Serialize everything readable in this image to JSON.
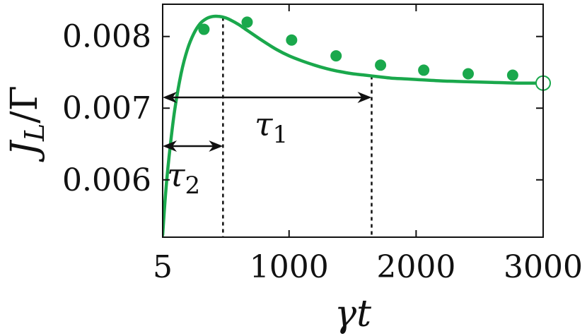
{
  "chart_data": {
    "type": "line",
    "xlabel": "γt",
    "ylabel": "J_L/Γ",
    "xlim": [
      5,
      3000
    ],
    "ylim": [
      0.0052,
      0.00845
    ],
    "x_ticks": [
      {
        "value": 5,
        "label": "5"
      },
      {
        "value": 1000,
        "label": "1000"
      },
      {
        "value": 2000,
        "label": "2000"
      },
      {
        "value": 3000,
        "label": "3000"
      }
    ],
    "y_ticks": [
      {
        "value": 0.006,
        "label": "0.006"
      },
      {
        "value": 0.007,
        "label": "0.007"
      },
      {
        "value": 0.008,
        "label": "0.008"
      }
    ],
    "color": "#1aa84c",
    "series": [
      {
        "kind": "curve",
        "x": [
          5,
          30,
          60,
          100,
          150,
          200,
          250,
          300,
          350,
          400,
          450,
          500,
          550,
          600,
          650,
          700,
          800,
          900,
          1000,
          1100,
          1200,
          1300,
          1400,
          1500,
          1600,
          1700,
          1800,
          1900,
          2000,
          2200,
          2400,
          2600,
          2800,
          3000
        ],
        "y": [
          0.00523,
          0.00585,
          0.0064,
          0.00698,
          0.00748,
          0.00782,
          0.00804,
          0.00818,
          0.00825,
          0.00828,
          0.00828,
          0.00826,
          0.00822,
          0.00817,
          0.00811,
          0.00805,
          0.00793,
          0.00782,
          0.00773,
          0.00766,
          0.0076,
          0.00755,
          0.00751,
          0.00748,
          0.00746,
          0.00744,
          0.00742,
          0.00741,
          0.0074,
          0.00738,
          0.00737,
          0.00736,
          0.00735,
          0.00735
        ]
      },
      {
        "kind": "points",
        "x": [
          330,
          670,
          1020,
          1370,
          1720,
          2060,
          2410,
          2760
        ],
        "y": [
          0.0081,
          0.0082,
          0.00795,
          0.00773,
          0.0076,
          0.00753,
          0.00748,
          0.00746
        ]
      },
      {
        "kind": "open-point",
        "x": [
          3000
        ],
        "y": [
          0.00735
        ]
      }
    ],
    "annotations": [
      {
        "label": "τ1",
        "arrow_x": [
          5,
          1650
        ],
        "arrow_y": 0.00715
      },
      {
        "label": "τ2",
        "arrow_x": [
          5,
          480
        ],
        "arrow_y": 0.00647
      }
    ],
    "guide_lines_x": [
      480,
      1650
    ]
  }
}
